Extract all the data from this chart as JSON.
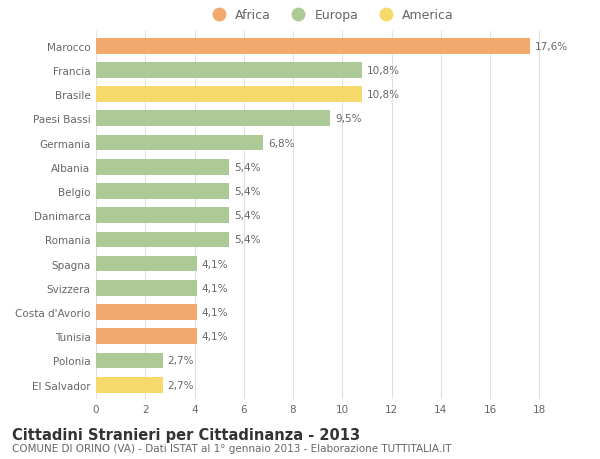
{
  "countries": [
    "Marocco",
    "Francia",
    "Brasile",
    "Paesi Bassi",
    "Germania",
    "Albania",
    "Belgio",
    "Danimarca",
    "Romania",
    "Spagna",
    "Svizzera",
    "Costa d'Avorio",
    "Tunisia",
    "Polonia",
    "El Salvador"
  ],
  "values": [
    17.6,
    10.8,
    10.8,
    9.5,
    6.8,
    5.4,
    5.4,
    5.4,
    5.4,
    4.1,
    4.1,
    4.1,
    4.1,
    2.7,
    2.7
  ],
  "labels": [
    "17,6%",
    "10,8%",
    "10,8%",
    "9,5%",
    "6,8%",
    "5,4%",
    "5,4%",
    "5,4%",
    "5,4%",
    "4,1%",
    "4,1%",
    "4,1%",
    "4,1%",
    "2,7%",
    "2,7%"
  ],
  "continents": [
    "Africa",
    "Europa",
    "America",
    "Europa",
    "Europa",
    "Europa",
    "Europa",
    "Europa",
    "Europa",
    "Europa",
    "Europa",
    "Africa",
    "Africa",
    "Europa",
    "America"
  ],
  "colors": {
    "Africa": "#F2A96E",
    "Europa": "#ADCA96",
    "America": "#F5D96A"
  },
  "legend_order": [
    "Africa",
    "Europa",
    "America"
  ],
  "title": "Cittadini Stranieri per Cittadinanza - 2013",
  "subtitle": "COMUNE DI ORINO (VA) - Dati ISTAT al 1° gennaio 2013 - Elaborazione TUTTITALIA.IT",
  "xlim": [
    0,
    19
  ],
  "xticks": [
    0,
    2,
    4,
    6,
    8,
    10,
    12,
    14,
    16,
    18
  ],
  "background_color": "#ffffff",
  "grid_color": "#e0e0e0",
  "bar_height": 0.65,
  "title_fontsize": 10.5,
  "subtitle_fontsize": 7.5,
  "label_fontsize": 7.5,
  "tick_fontsize": 7.5,
  "legend_fontsize": 9,
  "text_color": "#666666"
}
